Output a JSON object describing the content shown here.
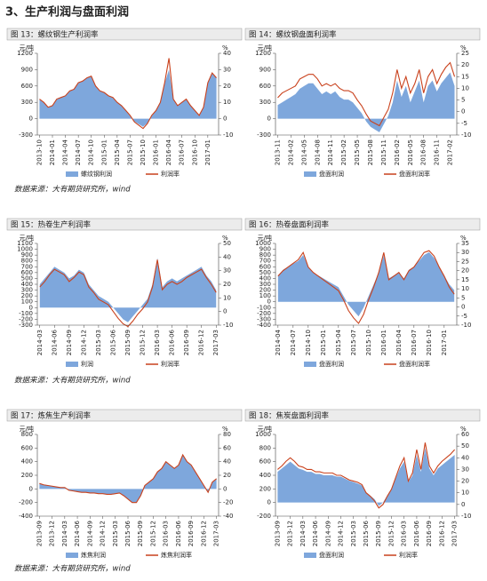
{
  "heading": "3、生产利润与盘面利润",
  "notes": [
    "数据来源：大有期货研究所，wind",
    "数据来源：大有期货研究所，wind",
    "数据来源：大有期货研究所，wind"
  ],
  "chart_data": [
    {
      "type": "combo",
      "title": "图 13：螺纹钢生产利润率",
      "y_label": "元/吨",
      "y2_label": "%",
      "categories": [
        "2013-10",
        null,
        null,
        "2014-01",
        null,
        null,
        "2014-04",
        null,
        null,
        "2014-07",
        null,
        null,
        "2014-10",
        null,
        null,
        "2015-01",
        null,
        null,
        "2015-04",
        null,
        null,
        "2015-07",
        null,
        null,
        "2015-10",
        null,
        null,
        "2016-01",
        null,
        null,
        "2016-04",
        null,
        null,
        "2016-07",
        null,
        null,
        "2016-10",
        null,
        null,
        "2017-01",
        null,
        null
      ],
      "ylim": [
        -300,
        1200
      ],
      "yticks": [
        -300,
        0,
        300,
        600,
        900,
        1200
      ],
      "y2lim": [
        -10,
        40
      ],
      "y2ticks": [
        -10,
        0,
        10,
        20,
        30,
        40
      ],
      "series": [
        {
          "name": "螺纹钢利润",
          "kind": "area",
          "color": "#7ea7dc",
          "values": [
            350,
            300,
            200,
            250,
            350,
            400,
            420,
            500,
            550,
            650,
            700,
            750,
            780,
            600,
            500,
            480,
            420,
            380,
            300,
            250,
            150,
            50,
            -50,
            -100,
            -150,
            -80,
            50,
            150,
            300,
            650,
            900,
            350,
            250,
            300,
            350,
            250,
            150,
            50,
            200,
            650,
            850,
            750
          ]
        },
        {
          "name": "利润率",
          "kind": "line",
          "axis": "y2",
          "color": "#c9411c",
          "values": [
            12,
            10,
            7,
            8,
            12,
            13,
            14,
            17,
            18,
            22,
            23,
            25,
            26,
            20,
            17,
            16,
            14,
            13,
            10,
            8,
            5,
            2,
            -2,
            -4,
            -6,
            -3,
            2,
            5,
            10,
            22,
            37,
            12,
            8,
            10,
            12,
            8,
            5,
            2,
            7,
            22,
            28,
            25
          ]
        }
      ]
    },
    {
      "type": "combo",
      "title": "图 14：螺纹钢盘面利润率",
      "y_label": "元/吨",
      "y2_label": "%",
      "categories": [
        "2013-11",
        null,
        null,
        "2014-02",
        null,
        null,
        "2014-05",
        null,
        null,
        "2014-08",
        null,
        null,
        "2014-11",
        null,
        null,
        "2015-02",
        null,
        null,
        "2015-05",
        null,
        null,
        "2015-08",
        null,
        null,
        "2015-11",
        null,
        null,
        "2016-02",
        null,
        null,
        "2016-05",
        null,
        null,
        "2016-08",
        null,
        null,
        "2016-11",
        null,
        null,
        "2017-02",
        null
      ],
      "ylim": [
        -300,
        1200
      ],
      "yticks": [
        -300,
        0,
        300,
        600,
        900,
        1200
      ],
      "y2lim": [
        -10,
        25
      ],
      "y2ticks": [
        -10,
        -5,
        0,
        5,
        10,
        15,
        20,
        25
      ],
      "series": [
        {
          "name": "盘面利润",
          "kind": "area",
          "color": "#7ea7dc",
          "values": [
            250,
            300,
            350,
            400,
            450,
            550,
            600,
            650,
            650,
            550,
            450,
            500,
            450,
            500,
            400,
            350,
            350,
            300,
            200,
            100,
            -50,
            -150,
            -200,
            -250,
            -100,
            50,
            300,
            700,
            400,
            600,
            300,
            500,
            700,
            300,
            600,
            700,
            500,
            650,
            750,
            850,
            600
          ]
        },
        {
          "name": "盘面利润率",
          "kind": "line",
          "axis": "y2",
          "color": "#c9411c",
          "values": [
            6,
            8,
            9,
            10,
            11,
            14,
            15,
            16,
            16,
            14,
            11,
            12,
            11,
            12,
            10,
            9,
            9,
            8,
            5,
            2.5,
            -1,
            -4,
            -5,
            -6,
            -2.5,
            1,
            8,
            18,
            10,
            15,
            8,
            12,
            18,
            8,
            15,
            18,
            12,
            16,
            19,
            21,
            15
          ]
        }
      ]
    },
    {
      "type": "combo",
      "title": "图 15：热卷生产利润率",
      "y_label": "元/吨",
      "y2_label": "%",
      "categories": [
        "2014-03",
        null,
        null,
        "2014-06",
        null,
        null,
        "2014-09",
        null,
        null,
        "2014-12",
        null,
        null,
        "2015-03",
        null,
        null,
        "2015-06",
        null,
        null,
        "2015-09",
        null,
        null,
        "2015-12",
        null,
        null,
        "2016-03",
        null,
        null,
        "2016-06",
        null,
        null,
        "2016-09",
        null,
        null,
        "2016-12",
        null,
        null,
        "2017-03"
      ],
      "ylim": [
        -300,
        1100
      ],
      "yticks": [
        -300,
        -200,
        -100,
        0,
        100,
        200,
        300,
        400,
        500,
        600,
        700,
        800,
        900,
        1000,
        1100
      ],
      "y2lim": [
        -10,
        50
      ],
      "y2ticks": [
        -10,
        0,
        10,
        20,
        30,
        40,
        50
      ],
      "series": [
        {
          "name": "利润",
          "kind": "area",
          "color": "#7ea7dc",
          "values": [
            400,
            500,
            600,
            700,
            650,
            600,
            500,
            550,
            650,
            600,
            400,
            300,
            200,
            150,
            100,
            0,
            -100,
            -200,
            -250,
            -150,
            -50,
            50,
            150,
            400,
            850,
            350,
            450,
            500,
            450,
            500,
            550,
            600,
            650,
            700,
            550,
            450,
            300
          ]
        },
        {
          "name": "利润率",
          "kind": "line",
          "axis": "y2",
          "color": "#c9411c",
          "values": [
            18,
            22,
            27,
            31,
            29,
            27,
            22,
            25,
            29,
            27,
            18,
            14,
            9,
            7,
            5,
            0,
            -5,
            -9,
            -11,
            -7,
            -2,
            2,
            7,
            18,
            38,
            16,
            20,
            22,
            20,
            22,
            25,
            27,
            29,
            31,
            25,
            20,
            14
          ]
        }
      ]
    },
    {
      "type": "combo",
      "title": "图 16：热卷盘面利润率",
      "y_label": "元/吨",
      "y2_label": "%",
      "categories": [
        "2014-04",
        null,
        null,
        "2014-07",
        null,
        null,
        "2014-10",
        null,
        null,
        "2015-01",
        null,
        null,
        "2015-04",
        null,
        null,
        "2015-07",
        null,
        null,
        "2015-10",
        null,
        null,
        "2016-01",
        null,
        null,
        "2016-04",
        null,
        null,
        "2016-07",
        null,
        null,
        "2016-10",
        null,
        null,
        "2017-01",
        null,
        null
      ],
      "ylim": [
        -400,
        1000
      ],
      "yticks": [
        -400,
        -300,
        -200,
        -100,
        0,
        100,
        200,
        300,
        400,
        500,
        600,
        700,
        800,
        900,
        1000
      ],
      "y2lim": [
        -10,
        35
      ],
      "y2ticks": [
        -10,
        -5,
        0,
        5,
        10,
        15,
        20,
        25,
        30,
        35
      ],
      "series": [
        {
          "name": "盘面利润",
          "kind": "area",
          "color": "#7ea7dc",
          "values": [
            450,
            550,
            600,
            650,
            700,
            800,
            600,
            500,
            450,
            400,
            350,
            300,
            250,
            100,
            -50,
            -150,
            -250,
            -100,
            100,
            300,
            500,
            800,
            400,
            450,
            500,
            400,
            550,
            600,
            700,
            800,
            850,
            750,
            600,
            450,
            300,
            200
          ]
        },
        {
          "name": "盘面利润率",
          "kind": "line",
          "axis": "y2",
          "color": "#c9411c",
          "values": [
            17,
            20,
            22,
            24,
            26,
            30,
            22,
            19,
            17,
            15,
            13,
            11,
            9,
            4,
            -2,
            -6,
            -9,
            -4,
            4,
            11,
            19,
            30,
            15,
            17,
            19,
            15,
            20,
            22,
            26,
            30,
            31,
            28,
            22,
            17,
            11,
            7
          ]
        }
      ]
    },
    {
      "type": "combo",
      "title": "图 17：炼焦生产利润率",
      "y_label": "元/吨",
      "y2_label": "%",
      "categories": [
        "2013-09",
        null,
        null,
        "2013-12",
        null,
        null,
        "2014-03",
        null,
        null,
        "2014-06",
        null,
        null,
        "2014-09",
        null,
        null,
        "2014-12",
        null,
        null,
        "2015-03",
        null,
        null,
        "2015-06",
        null,
        null,
        "2015-09",
        null,
        null,
        "2015-12",
        null,
        null,
        "2016-03",
        null,
        null,
        "2016-06",
        null,
        null,
        "2016-09",
        null,
        null,
        "2016-12",
        null,
        null,
        "2017-03"
      ],
      "ylim": [
        -400,
        800
      ],
      "yticks": [
        -400,
        -200,
        0,
        200,
        400,
        600,
        800
      ],
      "y2lim": [
        -40,
        80
      ],
      "y2ticks": [
        -40,
        -20,
        0,
        20,
        40,
        60,
        80
      ],
      "series": [
        {
          "name": "炼焦利润",
          "kind": "area",
          "color": "#7ea7dc",
          "values": [
            80,
            60,
            50,
            40,
            30,
            20,
            20,
            -20,
            -30,
            -40,
            -50,
            -50,
            -60,
            -60,
            -70,
            -70,
            -80,
            -80,
            -70,
            -60,
            -100,
            -150,
            -200,
            -200,
            -100,
            50,
            100,
            150,
            250,
            300,
            400,
            350,
            300,
            350,
            500,
            400,
            350,
            250,
            150,
            50,
            -50,
            100,
            150
          ]
        },
        {
          "name": "炼焦利润率",
          "kind": "line",
          "axis": "y2",
          "color": "#c9411c",
          "values": [
            8,
            6,
            5,
            4,
            3,
            2,
            2,
            -2,
            -3,
            -4,
            -5,
            -5,
            -6,
            -6,
            -7,
            -7,
            -8,
            -8,
            -7,
            -6,
            -10,
            -15,
            -20,
            -20,
            -10,
            5,
            10,
            15,
            25,
            30,
            40,
            35,
            30,
            35,
            50,
            40,
            35,
            25,
            15,
            5,
            -5,
            10,
            15
          ]
        }
      ]
    },
    {
      "type": "combo",
      "title": "图 18：焦炭盘面利润率",
      "y_label": "元/吨",
      "y2_label": "%",
      "categories": [
        "2013-09",
        null,
        null,
        "2013-12",
        null,
        null,
        "2014-03",
        null,
        null,
        "2014-06",
        null,
        null,
        "2014-09",
        null,
        null,
        "2014-12",
        null,
        null,
        "2015-03",
        null,
        null,
        "2015-06",
        null,
        null,
        "2015-09",
        null,
        null,
        "2015-12",
        null,
        null,
        "2016-03",
        null,
        null,
        "2016-06",
        null,
        null,
        "2016-09",
        null,
        null,
        "2016-12",
        null,
        null,
        "2017-03"
      ],
      "ylim": [
        -200,
        1000
      ],
      "yticks": [
        -200,
        0,
        200,
        400,
        600,
        800,
        1000
      ],
      "y2lim": [
        -10,
        60
      ],
      "y2ticks": [
        -10,
        0,
        10,
        20,
        30,
        40,
        50,
        60
      ],
      "series": [
        {
          "name": "盘面利润",
          "kind": "area",
          "color": "#7ea7dc",
          "values": [
            450,
            500,
            550,
            600,
            550,
            500,
            480,
            450,
            450,
            420,
            420,
            400,
            400,
            400,
            380,
            380,
            350,
            320,
            300,
            280,
            250,
            150,
            100,
            50,
            -50,
            0,
            100,
            200,
            350,
            500,
            600,
            300,
            400,
            700,
            450,
            800,
            500,
            400,
            500,
            550,
            600,
            650,
            700
          ]
        },
        {
          "name": "利润率",
          "kind": "line",
          "axis": "y2",
          "color": "#c9411c",
          "values": [
            30,
            33,
            37,
            40,
            37,
            33,
            32,
            30,
            30,
            28,
            28,
            27,
            27,
            27,
            25,
            25,
            23,
            21,
            20,
            19,
            17,
            10,
            7,
            3,
            -3,
            0,
            7,
            13,
            23,
            33,
            40,
            20,
            27,
            47,
            30,
            53,
            33,
            27,
            33,
            37,
            40,
            43,
            47
          ]
        }
      ]
    }
  ]
}
